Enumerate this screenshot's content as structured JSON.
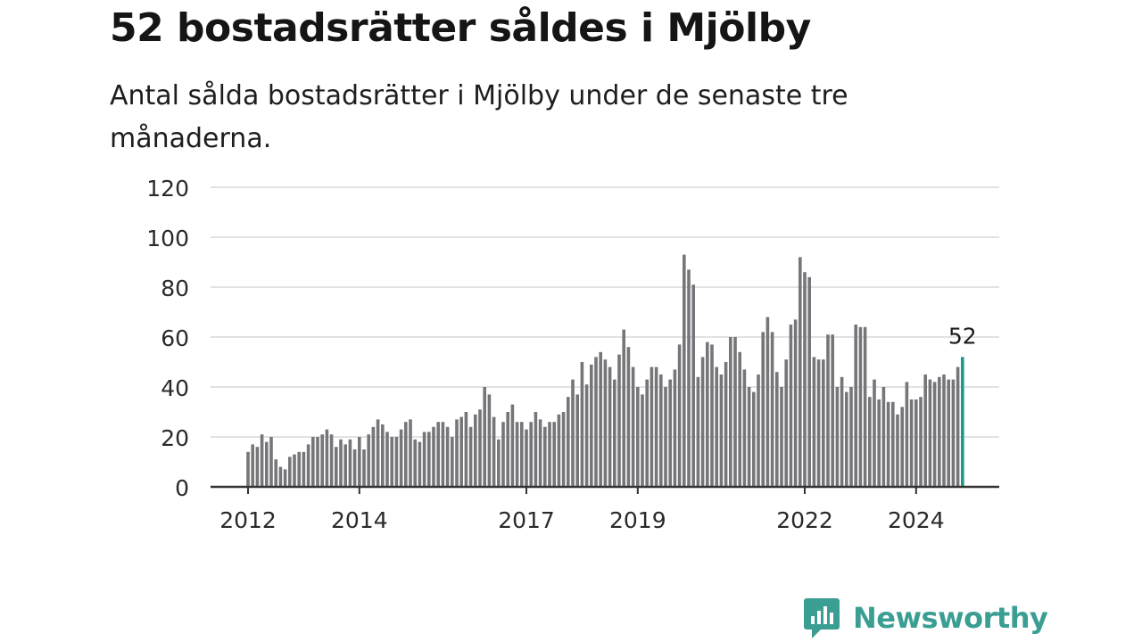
{
  "title": "52 bostadsrätter såldes i Mjölby",
  "subtitle": "Antal sålda bostadsrätter i Mjölby under de senaste tre månaderna.",
  "brand": {
    "name": "Newsworthy",
    "color": "#3a9e92"
  },
  "chart_data": {
    "type": "bar",
    "ylim": [
      0,
      120
    ],
    "y_ticks": [
      0,
      20,
      40,
      60,
      80,
      100,
      120
    ],
    "grid": true,
    "bar_color": "#76757a",
    "highlight_color": "#1a9a8c",
    "highlight_label": "52",
    "x_tick_labels": [
      {
        "label": "2012",
        "index": 0
      },
      {
        "label": "2014",
        "index": 24
      },
      {
        "label": "2017",
        "index": 60
      },
      {
        "label": "2019",
        "index": 84
      },
      {
        "label": "2022",
        "index": 120
      },
      {
        "label": "2024",
        "index": 144
      }
    ],
    "values": [
      14,
      17,
      16,
      21,
      18,
      20,
      11,
      8,
      7,
      12,
      13,
      14,
      14,
      17,
      20,
      20,
      21,
      23,
      21,
      16,
      19,
      17,
      19,
      15,
      20,
      15,
      21,
      24,
      27,
      25,
      22,
      20,
      20,
      23,
      26,
      27,
      19,
      18,
      22,
      22,
      24,
      26,
      26,
      24,
      20,
      27,
      28,
      30,
      24,
      29,
      31,
      40,
      37,
      28,
      19,
      26,
      30,
      33,
      26,
      26,
      23,
      26,
      30,
      27,
      24,
      26,
      26,
      29,
      30,
      36,
      43,
      37,
      50,
      41,
      49,
      52,
      54,
      51,
      48,
      43,
      53,
      63,
      56,
      48,
      40,
      37,
      43,
      48,
      48,
      45,
      40,
      43,
      47,
      57,
      93,
      87,
      81,
      44,
      52,
      58,
      57,
      48,
      45,
      50,
      60,
      60,
      54,
      47,
      40,
      38,
      45,
      62,
      68,
      62,
      46,
      40,
      51,
      65,
      67,
      92,
      86,
      84,
      52,
      51,
      51,
      61,
      61,
      40,
      44,
      38,
      40,
      65,
      64,
      64,
      36,
      43,
      35,
      40,
      34,
      34,
      29,
      32,
      42,
      35,
      35,
      36,
      45,
      43,
      42,
      44,
      45,
      43,
      43,
      48,
      52
    ]
  }
}
